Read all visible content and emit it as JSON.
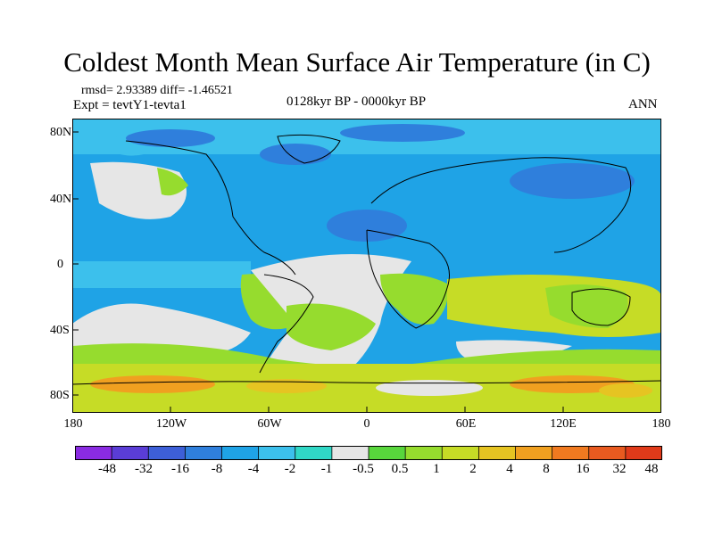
{
  "title": "Coldest Month Mean Surface Air Temperature (in C)",
  "stats": "rmsd= 2.93389 diff= -1.46521",
  "experiment": "Expt = tevtY1-tevta1",
  "period": "0128kyr BP - 0000kyr BP",
  "season": "ANN",
  "lat_labels": [
    "80N",
    "40N",
    "0",
    "40S",
    "80S"
  ],
  "lon_labels": [
    "180",
    "120W",
    "60W",
    "0",
    "60E",
    "120E",
    "180"
  ],
  "colorbar": {
    "labels": [
      "-48",
      "-32",
      "-16",
      "-8",
      "-4",
      "-2",
      "-1",
      "-0.5",
      "0.5",
      "1",
      "2",
      "4",
      "8",
      "16",
      "32",
      "48"
    ],
    "colors": [
      "#8a2be2",
      "#5a3dd6",
      "#3d5fd8",
      "#2f7fdc",
      "#1fa3e6",
      "#3cc0ec",
      "#30d8c6",
      "#e6e6e6",
      "#58d63c",
      "#96dc2e",
      "#c6dc26",
      "#e6c422",
      "#f0a020",
      "#f07a20",
      "#e85a20",
      "#e03a1a"
    ]
  }
}
